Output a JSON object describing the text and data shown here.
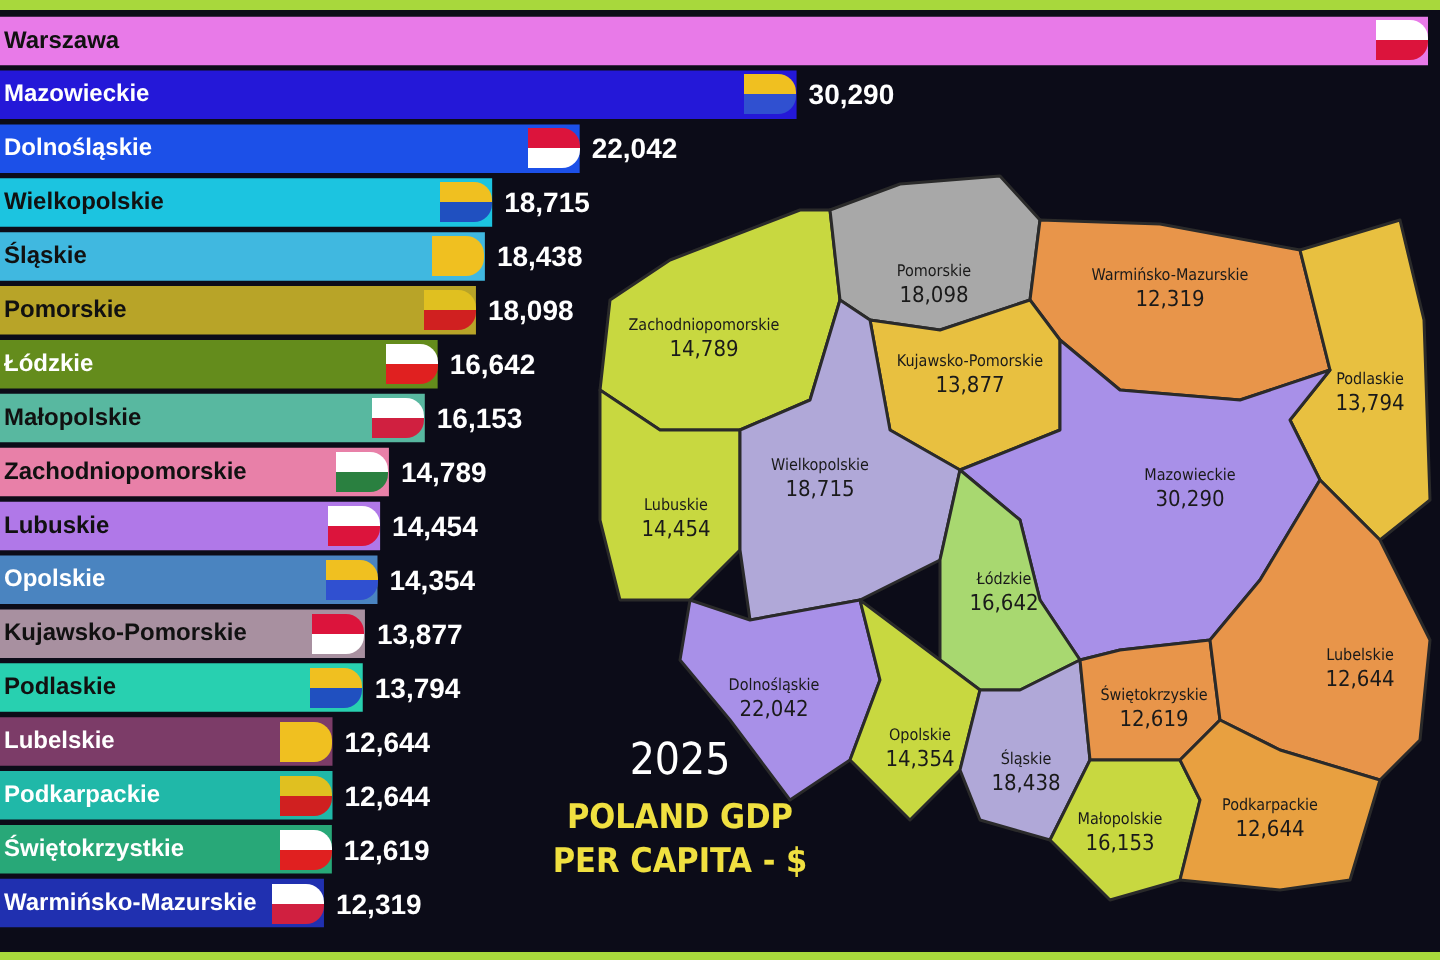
{
  "chart_data": [
    {
      "type": "bar",
      "orientation": "horizontal",
      "categories": [
        "Warszawa",
        "Mazowieckie",
        "Dolnośląskie",
        "Wielkopolskie",
        "Śląskie",
        "Pomorskie",
        "Łódzkie",
        "Małopolskie",
        "Zachodniopomorskie",
        "Lubuskie",
        "Opolskie",
        "Kujawsko-Pomorskie",
        "Podlaskie",
        "Lubelskie",
        "Podkarpackie",
        "Świętokrzystkie",
        "Warmińsko-Mazurskie"
      ],
      "values": [
        54300,
        30290,
        22042,
        18715,
        18438,
        18098,
        16642,
        16153,
        14789,
        14454,
        14354,
        13877,
        13794,
        12644,
        12644,
        12619,
        12319
      ],
      "value_labels": [
        null,
        "30,290",
        "22,042",
        "18,715",
        "18,438",
        "18,098",
        "16,642",
        "16,153",
        "14,789",
        "14,454",
        "14,354",
        "13,877",
        "13,794",
        "12,644",
        "12,644",
        "12,619",
        "12,319"
      ],
      "colors": [
        "#e87ae8",
        "#2418d8",
        "#1c50e8",
        "#1cc4e0",
        "#40b8e0",
        "#b8a428",
        "#648c1c",
        "#58b8a0",
        "#e880a8",
        "#b078e8",
        "#4a84c0",
        "#a890a0",
        "#28d0b0",
        "#7c3c68",
        "#20b8a8",
        "#28a878",
        "#2030b0"
      ],
      "legend": false
    },
    {
      "type": "other",
      "title": "POLAND GDP PER CAPITA - $",
      "subtitle": "2025",
      "categories": [
        "Zachodniopomorskie",
        "Pomorskie",
        "Warmińsko-Mazurskie",
        "Podlaskie",
        "Kujawsko-Pomorskie",
        "Lubuskie",
        "Wielkopolskie",
        "Mazowieckie",
        "Łódzkie",
        "Dolnośląskie",
        "Opolskie",
        "Śląskie",
        "Świętokrzyskie",
        "Lubelskie",
        "Małopolskie",
        "Podkarpackie"
      ],
      "values": [
        14789,
        18098,
        12319,
        13794,
        13877,
        14454,
        18715,
        30290,
        16642,
        22042,
        14354,
        18438,
        12619,
        12644,
        16153,
        12644
      ],
      "colors": [
        "#c8d840",
        "#a8a8a8",
        "#e8954a",
        "#e8c040",
        "#e8c040",
        "#c8d840",
        "#b0a8d8",
        "#a890e8",
        "#a8d870",
        "#a890e8",
        "#c8d840",
        "#b0a8d8",
        "#e8954a",
        "#e8954a",
        "#c8d840",
        "#e8a040"
      ],
      "value_labels": [
        "14,789",
        "18,098",
        "12,319",
        "13,794",
        "13,877",
        "14,454",
        "18,715",
        "30,290",
        "16,642",
        "22,042",
        "14,354",
        "18,438",
        "12,619",
        "12,644",
        "16,153",
        "12,644"
      ]
    }
  ]
}
